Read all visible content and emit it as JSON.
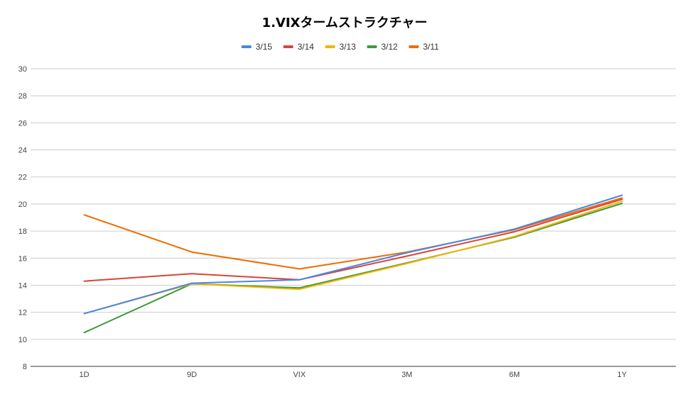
{
  "chart_data": {
    "type": "line",
    "title": "1.VIXタームストラクチャー",
    "xlabel": "",
    "ylabel": "",
    "categories": [
      "1D",
      "9D",
      "VIX",
      "3M",
      "6M",
      "1Y"
    ],
    "ylim": [
      8,
      30
    ],
    "yticks": [
      8,
      10,
      12,
      14,
      16,
      18,
      20,
      22,
      24,
      26,
      28,
      30
    ],
    "grid": true,
    "legend_position": "top",
    "series": [
      {
        "name": "3/15",
        "color": "#4a86e8",
        "values": [
          11.9,
          14.15,
          14.4,
          16.4,
          18.15,
          20.65
        ]
      },
      {
        "name": "3/14",
        "color": "#db4437",
        "values": [
          14.3,
          14.85,
          14.4,
          16.15,
          17.95,
          20.35
        ]
      },
      {
        "name": "3/13",
        "color": "#f4b400",
        "values": [
          11.9,
          14.1,
          13.7,
          15.6,
          17.6,
          20.2
        ]
      },
      {
        "name": "3/12",
        "color": "#3c9a3c",
        "values": [
          10.5,
          14.1,
          13.8,
          15.65,
          17.55,
          20.05
        ]
      },
      {
        "name": "3/11",
        "color": "#ef6c00",
        "values": [
          19.2,
          16.45,
          15.2,
          16.45,
          18.1,
          20.45
        ]
      }
    ]
  }
}
